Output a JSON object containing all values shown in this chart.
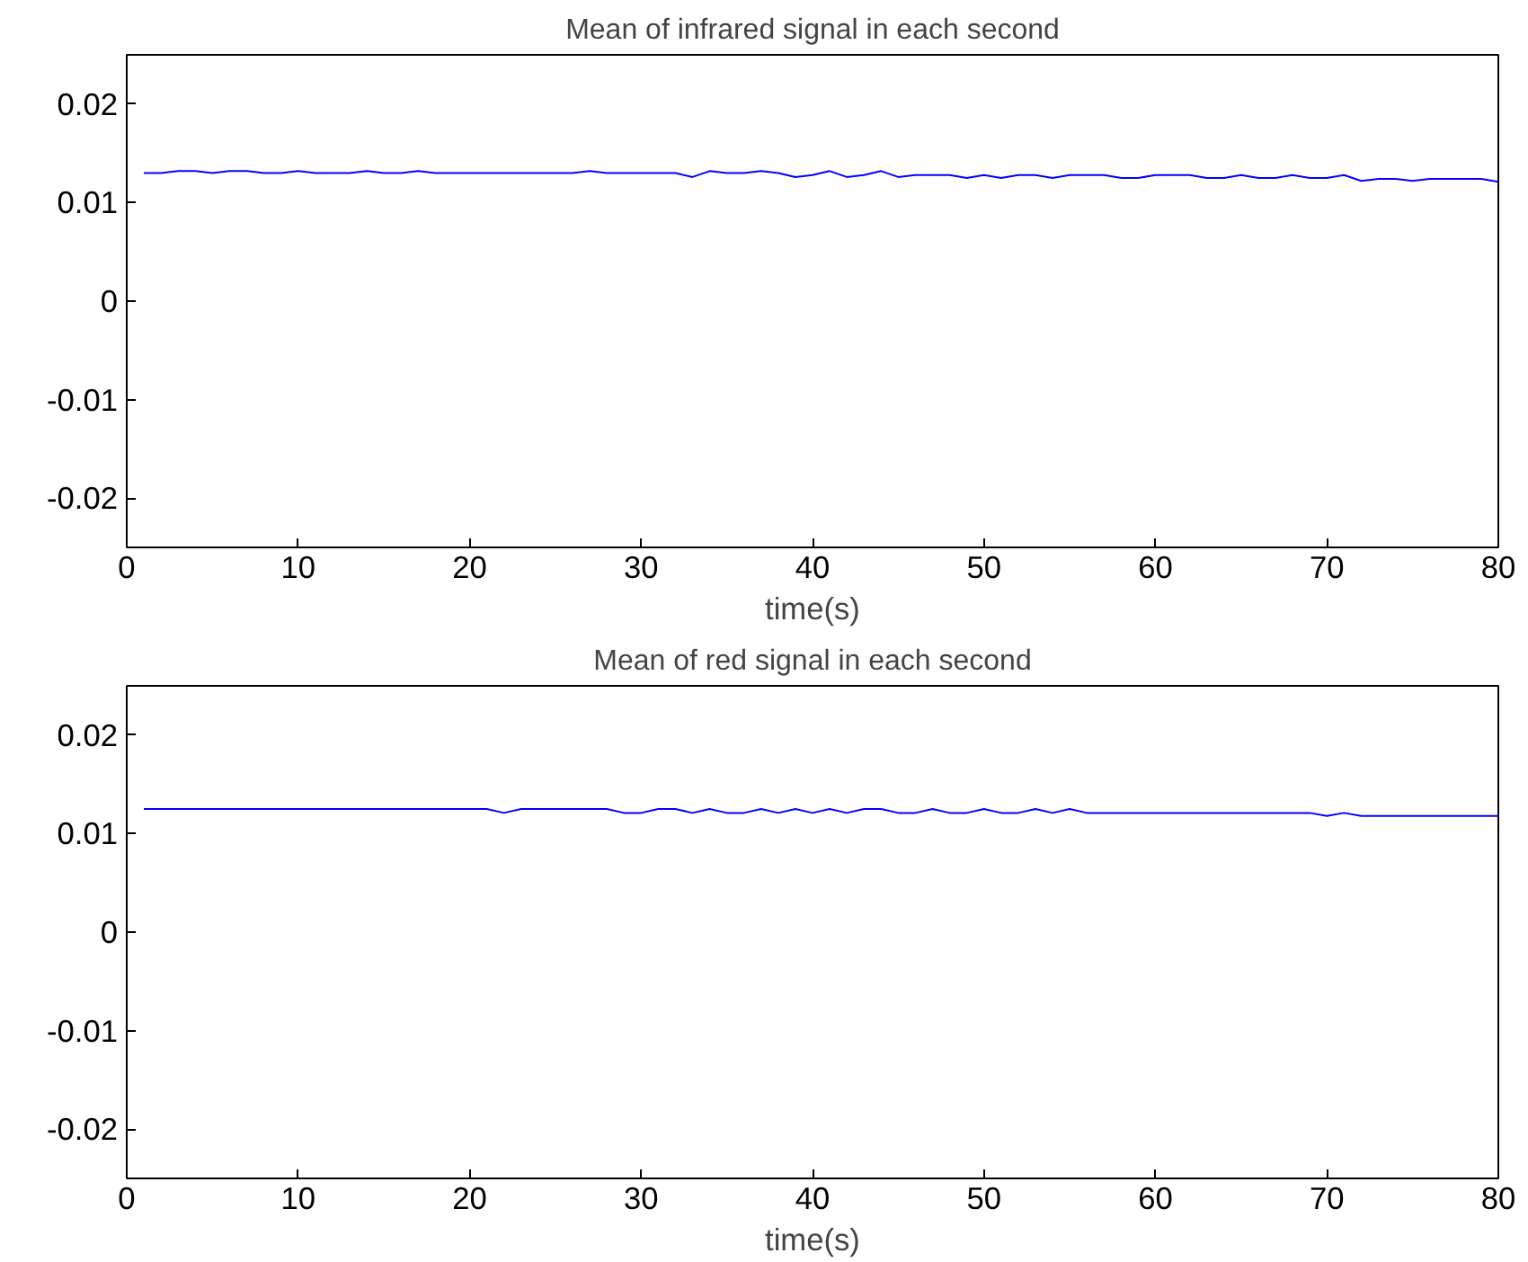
{
  "chart_data": [
    {
      "type": "line",
      "title": "Mean of infrared signal in each second",
      "xlabel": "time(s)",
      "xlim": [
        0,
        80
      ],
      "ylim": [
        -0.025,
        0.025
      ],
      "xticks": [
        0,
        10,
        20,
        30,
        40,
        50,
        60,
        70,
        80
      ],
      "yticks": [
        -0.02,
        -0.01,
        0,
        0.01,
        0.02
      ],
      "grid": false,
      "x": [
        1,
        2,
        3,
        4,
        5,
        6,
        7,
        8,
        9,
        10,
        11,
        12,
        13,
        14,
        15,
        16,
        17,
        18,
        19,
        20,
        21,
        22,
        23,
        24,
        25,
        26,
        27,
        28,
        29,
        30,
        31,
        32,
        33,
        34,
        35,
        36,
        37,
        38,
        39,
        40,
        41,
        42,
        43,
        44,
        45,
        46,
        47,
        48,
        49,
        50,
        51,
        52,
        53,
        54,
        55,
        56,
        57,
        58,
        59,
        60,
        61,
        62,
        63,
        64,
        65,
        66,
        67,
        68,
        69,
        70,
        71,
        72,
        73,
        74,
        75,
        76,
        77,
        78,
        79,
        80
      ],
      "series": [
        {
          "color": "#0000ff",
          "values": [
            0.013,
            0.013,
            0.0132,
            0.0132,
            0.013,
            0.0132,
            0.0132,
            0.013,
            0.013,
            0.0132,
            0.013,
            0.013,
            0.013,
            0.0132,
            0.013,
            0.013,
            0.0132,
            0.013,
            0.013,
            0.013,
            0.013,
            0.013,
            0.013,
            0.013,
            0.013,
            0.013,
            0.0132,
            0.013,
            0.013,
            0.013,
            0.013,
            0.013,
            0.0126,
            0.0132,
            0.013,
            0.013,
            0.0132,
            0.013,
            0.0126,
            0.0128,
            0.0132,
            0.0126,
            0.0128,
            0.0132,
            0.0126,
            0.0128,
            0.0128,
            0.0128,
            0.0125,
            0.0128,
            0.0125,
            0.0128,
            0.0128,
            0.0125,
            0.0128,
            0.0128,
            0.0128,
            0.0125,
            0.0125,
            0.0128,
            0.0128,
            0.0128,
            0.0125,
            0.0125,
            0.0128,
            0.0125,
            0.0125,
            0.0128,
            0.0125,
            0.0125,
            0.0128,
            0.0122,
            0.0124,
            0.0124,
            0.0122,
            0.0124,
            0.0124,
            0.0124,
            0.0124,
            0.0121
          ]
        }
      ]
    },
    {
      "type": "line",
      "title": "Mean of red signal in each second",
      "xlabel": "time(s)",
      "xlim": [
        0,
        80
      ],
      "ylim": [
        -0.025,
        0.025
      ],
      "xticks": [
        0,
        10,
        20,
        30,
        40,
        50,
        60,
        70,
        80
      ],
      "yticks": [
        -0.02,
        -0.01,
        0,
        0.01,
        0.02
      ],
      "grid": false,
      "x": [
        1,
        2,
        3,
        4,
        5,
        6,
        7,
        8,
        9,
        10,
        11,
        12,
        13,
        14,
        15,
        16,
        17,
        18,
        19,
        20,
        21,
        22,
        23,
        24,
        25,
        26,
        27,
        28,
        29,
        30,
        31,
        32,
        33,
        34,
        35,
        36,
        37,
        38,
        39,
        40,
        41,
        42,
        43,
        44,
        45,
        46,
        47,
        48,
        49,
        50,
        51,
        52,
        53,
        54,
        55,
        56,
        57,
        58,
        59,
        60,
        61,
        62,
        63,
        64,
        65,
        66,
        67,
        68,
        69,
        70,
        71,
        72,
        73,
        74,
        75,
        76,
        77,
        78,
        79,
        80
      ],
      "series": [
        {
          "color": "#0000ff",
          "values": [
            0.0125,
            0.0125,
            0.0125,
            0.0125,
            0.0125,
            0.0125,
            0.0125,
            0.0125,
            0.0125,
            0.0125,
            0.0125,
            0.0125,
            0.0125,
            0.0125,
            0.0125,
            0.0125,
            0.0125,
            0.0125,
            0.0125,
            0.0125,
            0.0125,
            0.0121,
            0.0125,
            0.0125,
            0.0125,
            0.0125,
            0.0125,
            0.0125,
            0.0121,
            0.0121,
            0.0125,
            0.0125,
            0.0121,
            0.0125,
            0.0121,
            0.0121,
            0.0125,
            0.0121,
            0.0125,
            0.0121,
            0.0125,
            0.0121,
            0.0125,
            0.0125,
            0.0121,
            0.0121,
            0.0125,
            0.0121,
            0.0121,
            0.0125,
            0.0121,
            0.0121,
            0.0125,
            0.0121,
            0.0125,
            0.0121,
            0.0121,
            0.0121,
            0.0121,
            0.0121,
            0.0121,
            0.0121,
            0.0121,
            0.0121,
            0.0121,
            0.0121,
            0.0121,
            0.0121,
            0.0121,
            0.0118,
            0.0121,
            0.0118,
            0.0118,
            0.0118,
            0.0118,
            0.0118,
            0.0118,
            0.0118,
            0.0118,
            0.0118
          ]
        }
      ]
    }
  ]
}
